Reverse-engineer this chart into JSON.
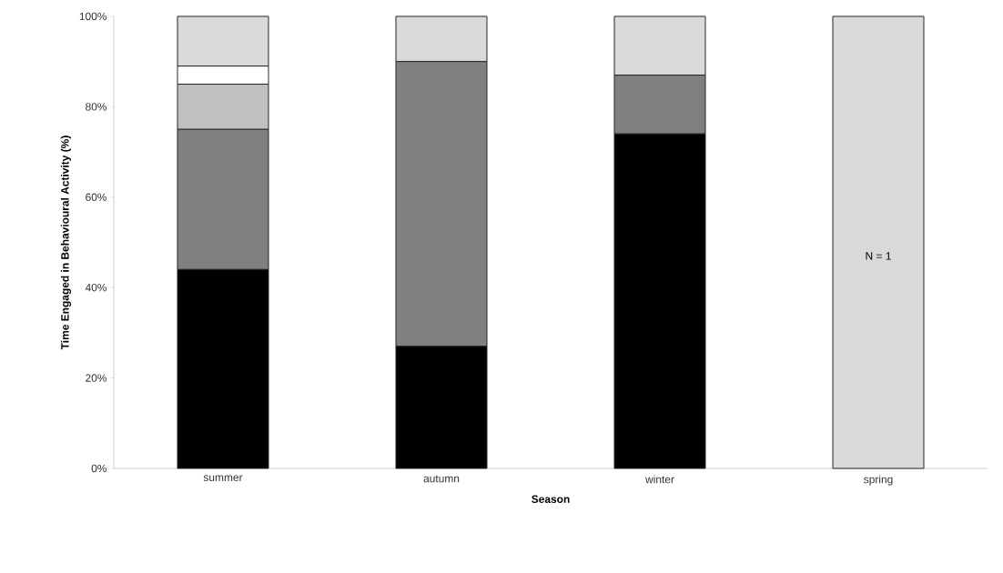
{
  "chart_data": {
    "type": "bar",
    "stacked": true,
    "xlabel": "Season",
    "ylabel": "Time Engaged  in  Behavioural Activity (%)",
    "categories": [
      "summer",
      "autumn",
      "winter",
      "spring"
    ],
    "series": [
      {
        "color": "#000000",
        "values": [
          44,
          27,
          74,
          0
        ]
      },
      {
        "color": "#808080",
        "values": [
          31,
          63,
          13,
          0
        ]
      },
      {
        "color": "#c0c0c0",
        "values": [
          10,
          0,
          0,
          0
        ]
      },
      {
        "color": "#ffffff",
        "values": [
          4,
          0,
          0,
          0
        ]
      },
      {
        "color": "#d9d9d9",
        "values": [
          11,
          10,
          13,
          100
        ]
      }
    ],
    "ylim": [
      0,
      100
    ],
    "yticks": [
      {
        "value": 0,
        "label": "0%"
      },
      {
        "value": 20,
        "label": "20%"
      },
      {
        "value": 40,
        "label": "40%"
      },
      {
        "value": 60,
        "label": "60%"
      },
      {
        "value": 80,
        "label": "80%"
      },
      {
        "value": 100,
        "label": "100%"
      }
    ],
    "annotations": [
      "N = 1"
    ],
    "grid": false,
    "legend": false
  }
}
